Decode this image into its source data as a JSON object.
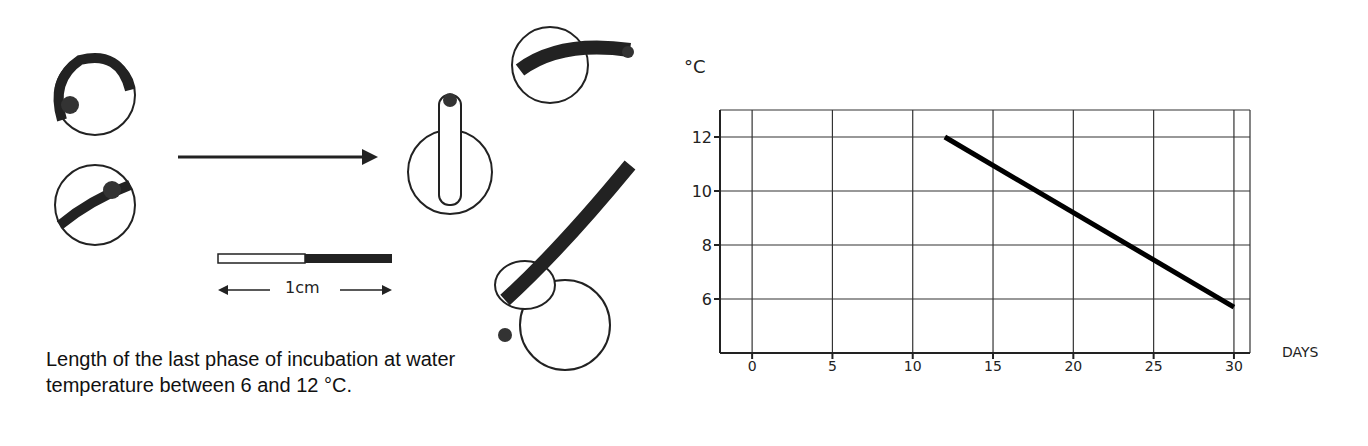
{
  "chart_data": {
    "type": "line",
    "x": [
      12,
      30
    ],
    "values": [
      12,
      5.7
    ],
    "color": "#000000",
    "xlim": [
      -2,
      31
    ],
    "ylim": [
      4,
      13
    ],
    "xticks": [
      0,
      5,
      10,
      15,
      20,
      25,
      30
    ],
    "yticks": [
      6,
      8,
      10,
      12
    ],
    "grid": true,
    "xlabel": "DAYS",
    "ylabel": "°C",
    "caption": "Length of the last phase of incubation at water temperature between 6 and 12 °C.",
    "scale_bar_label": "1cm"
  }
}
